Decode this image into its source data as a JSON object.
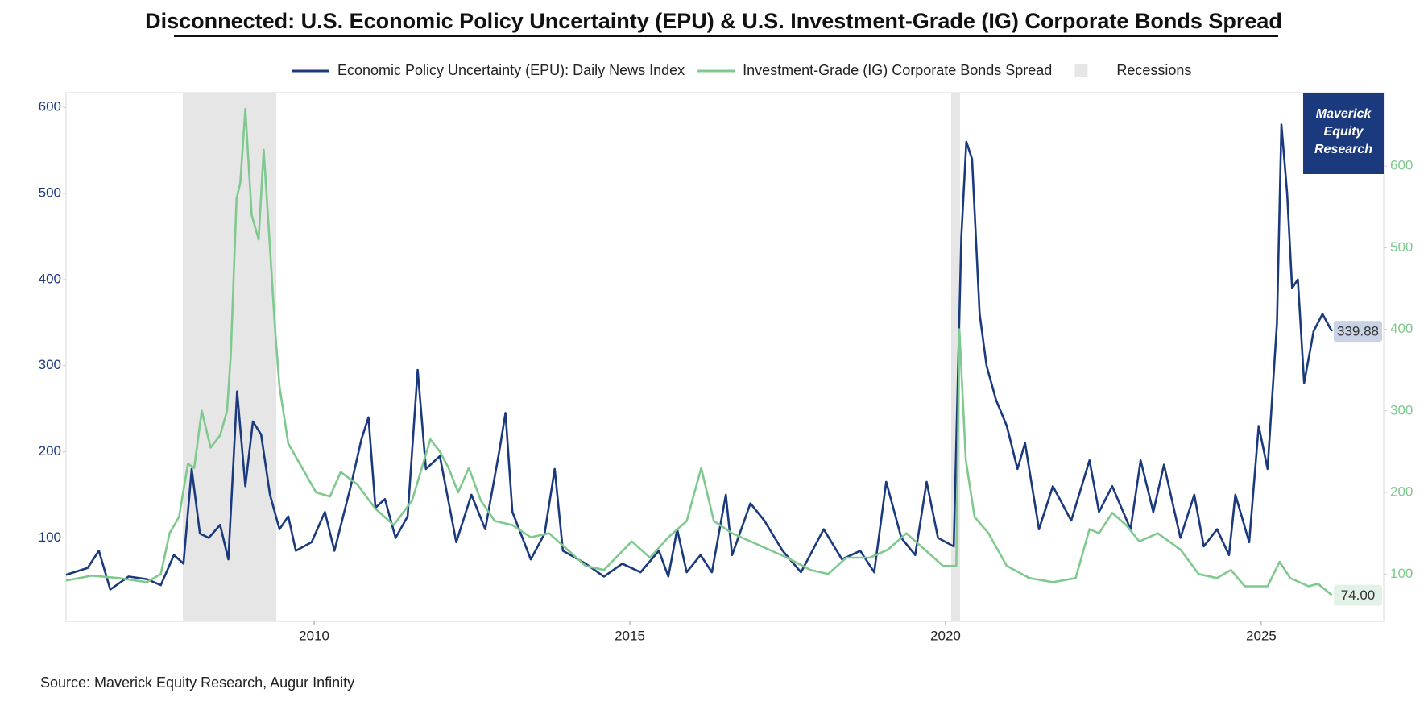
{
  "chart_data": {
    "type": "line",
    "title": "Disconnected: U.S. Economic Policy Uncertainty (EPU) & U.S. Investment-Grade (IG) Corporate Bonds Spread",
    "source": "Source: Maverick Equity Research, Augur Infinity",
    "watermark": [
      "Maverick",
      "Equity",
      "Research"
    ],
    "recession_label": "Recessions",
    "recession_color": "#e6e6e6",
    "recessions": [
      [
        2007.92,
        2009.4
      ],
      [
        2020.09,
        2020.23
      ]
    ],
    "xlim": [
      2006.07,
      2026.94
    ],
    "xticks": [
      2010,
      2015,
      2020,
      2025
    ],
    "ylim": [
      3,
      617
    ],
    "yticks": [
      100,
      200,
      300,
      400,
      500,
      600
    ],
    "y2lim": [
      42,
      690
    ],
    "y2ticks": [
      100,
      200,
      300,
      400,
      500,
      600
    ],
    "series": [
      {
        "name": "Economic Policy Uncertainty (EPU): Daily News Index",
        "color": "#1b3a7e",
        "axis": "y",
        "end_label": "339.88",
        "x": [
          2006.07,
          2006.41,
          2006.59,
          2006.77,
          2007.06,
          2007.35,
          2007.57,
          2007.78,
          2007.93,
          2008.06,
          2008.19,
          2008.33,
          2008.51,
          2008.64,
          2008.78,
          2008.91,
          2009.03,
          2009.16,
          2009.3,
          2009.45,
          2009.59,
          2009.71,
          2009.96,
          2010.17,
          2010.32,
          2010.58,
          2010.75,
          2010.86,
          2010.97,
          2011.12,
          2011.29,
          2011.48,
          2011.64,
          2011.77,
          2011.99,
          2012.25,
          2012.49,
          2012.71,
          2012.93,
          2013.03,
          2013.14,
          2013.43,
          2013.65,
          2013.81,
          2013.94,
          2014.3,
          2014.59,
          2014.88,
          2015.17,
          2015.46,
          2015.61,
          2015.75,
          2015.9,
          2016.12,
          2016.3,
          2016.52,
          2016.62,
          2016.91,
          2017.13,
          2017.42,
          2017.71,
          2018.07,
          2018.36,
          2018.65,
          2018.87,
          2019.06,
          2019.3,
          2019.52,
          2019.7,
          2019.88,
          2020.13,
          2020.25,
          2020.33,
          2020.42,
          2020.54,
          2020.65,
          2020.8,
          2020.97,
          2021.14,
          2021.26,
          2021.48,
          2021.7,
          2021.99,
          2022.28,
          2022.43,
          2022.64,
          2022.93,
          2023.09,
          2023.29,
          2023.46,
          2023.72,
          2023.94,
          2024.09,
          2024.3,
          2024.49,
          2024.59,
          2024.81,
          2024.96,
          2025.1,
          2025.25,
          2025.32,
          2025.41,
          2025.49,
          2025.58,
          2025.68,
          2025.83,
          2025.97,
          2026.12
        ],
        "values": [
          57,
          65,
          85,
          40,
          55,
          52,
          45,
          80,
          70,
          180,
          105,
          100,
          115,
          75,
          270,
          160,
          235,
          220,
          150,
          110,
          125,
          85,
          95,
          130,
          85,
          160,
          215,
          240,
          135,
          145,
          100,
          125,
          295,
          180,
          195,
          95,
          150,
          110,
          200,
          245,
          130,
          75,
          105,
          180,
          85,
          70,
          55,
          70,
          60,
          85,
          55,
          110,
          60,
          80,
          60,
          150,
          80,
          140,
          120,
          85,
          60,
          110,
          75,
          85,
          60,
          165,
          100,
          80,
          165,
          100,
          90,
          450,
          560,
          540,
          360,
          300,
          260,
          230,
          180,
          210,
          110,
          160,
          120,
          190,
          130,
          160,
          110,
          190,
          130,
          185,
          100,
          150,
          90,
          110,
          80,
          150,
          95,
          230,
          180,
          350,
          580,
          500,
          390,
          400,
          280,
          340,
          360,
          339.88
        ]
      },
      {
        "name": "Investment-Grade (IG) Corporate Bonds Spread",
        "color": "#7fc98f",
        "axis": "y2",
        "end_label": "74.00",
        "x": [
          2006.07,
          2006.48,
          2006.91,
          2007.35,
          2007.57,
          2007.71,
          2007.86,
          2008.0,
          2008.1,
          2008.22,
          2008.36,
          2008.51,
          2008.62,
          2008.68,
          2008.77,
          2008.83,
          2008.91,
          2009.01,
          2009.12,
          2009.2,
          2009.3,
          2009.38,
          2009.45,
          2009.59,
          2009.81,
          2010.03,
          2010.25,
          2010.42,
          2010.68,
          2010.97,
          2011.26,
          2011.55,
          2011.84,
          2011.99,
          2012.13,
          2012.28,
          2012.45,
          2012.64,
          2012.86,
          2013.14,
          2013.43,
          2013.72,
          2014.01,
          2014.3,
          2014.59,
          2015.03,
          2015.32,
          2015.61,
          2015.9,
          2016.13,
          2016.33,
          2016.62,
          2017.06,
          2017.49,
          2017.86,
          2018.14,
          2018.43,
          2018.8,
          2019.09,
          2019.38,
          2019.67,
          2019.96,
          2020.17,
          2020.22,
          2020.32,
          2020.46,
          2020.68,
          2020.97,
          2021.33,
          2021.7,
          2022.06,
          2022.28,
          2022.43,
          2022.64,
          2022.86,
          2023.07,
          2023.36,
          2023.72,
          2024.01,
          2024.3,
          2024.52,
          2024.74,
          2025.1,
          2025.29,
          2025.46,
          2025.75,
          2025.9,
          2026.12
        ],
        "values": [
          92,
          98,
          95,
          90,
          100,
          150,
          170,
          235,
          230,
          300,
          255,
          270,
          300,
          370,
          560,
          580,
          670,
          540,
          510,
          620,
          500,
          400,
          330,
          260,
          230,
          200,
          195,
          225,
          210,
          180,
          160,
          190,
          265,
          250,
          230,
          200,
          230,
          190,
          165,
          160,
          145,
          150,
          130,
          110,
          105,
          140,
          120,
          145,
          165,
          230,
          165,
          150,
          135,
          120,
          105,
          100,
          120,
          120,
          130,
          150,
          130,
          110,
          110,
          400,
          240,
          170,
          150,
          110,
          95,
          90,
          95,
          155,
          150,
          175,
          160,
          140,
          150,
          130,
          100,
          95,
          105,
          85,
          85,
          115,
          95,
          85,
          88,
          74
        ]
      }
    ]
  }
}
